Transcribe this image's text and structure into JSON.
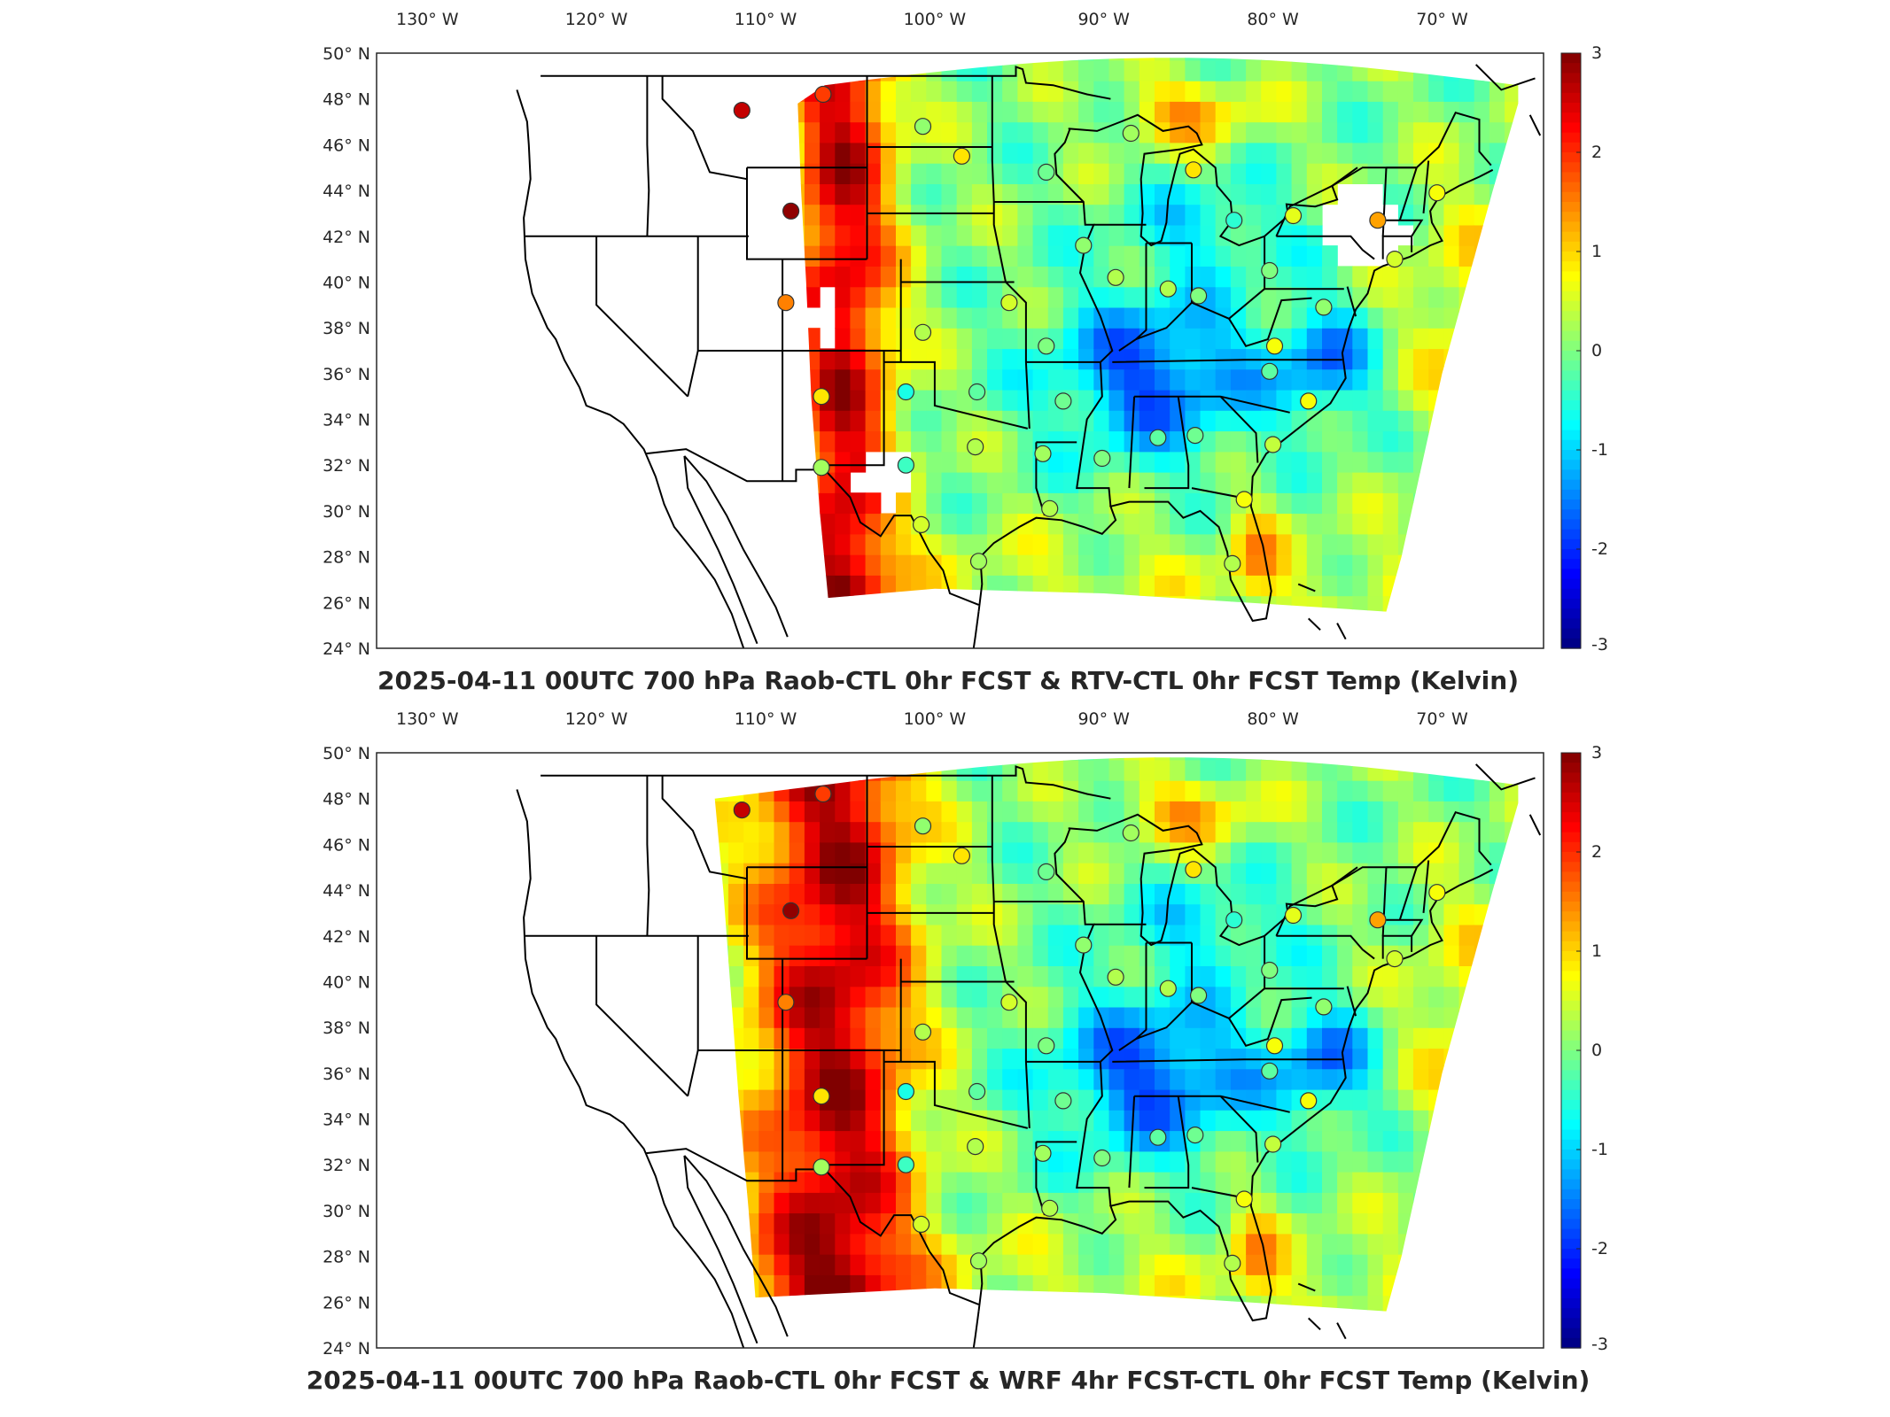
{
  "lon_labels": [
    "130° W",
    "120° W",
    "110° W",
    "100° W",
    "90° W",
    "80° W",
    "70° W"
  ],
  "lat_labels": [
    "50° N",
    "48° N",
    "46° N",
    "44° N",
    "42° N",
    "40° N",
    "38° N",
    "36° N",
    "34° N",
    "32° N",
    "30° N",
    "28° N",
    "26° N",
    "24° N"
  ],
  "colorbar": {
    "ticks": [
      "3",
      "2",
      "1",
      "0",
      "-1",
      "-2",
      "-3"
    ],
    "colormap": "jet",
    "range": [
      -3,
      3
    ]
  },
  "panels": [
    {
      "title": "2025-04-11 00UTC 700 hPa Raob-CTL 0hr FCST & RTV-CTL 0hr FCST Temp (Kelvin)"
    },
    {
      "title": "2025-04-11 00UTC 700 hPa Raob-CTL 0hr FCST & WRF 4hr FCST-CTL 0hr FCST Temp (Kelvin)"
    }
  ],
  "stations": [
    {
      "lon": -111.4,
      "lat": 47.5,
      "v": 2.6
    },
    {
      "lon": -108.5,
      "lat": 43.1,
      "v": 2.9
    },
    {
      "lon": -106.6,
      "lat": 48.2,
      "v": 1.9
    },
    {
      "lon": -108.8,
      "lat": 39.1,
      "v": 1.5
    },
    {
      "lon": -106.7,
      "lat": 35.0,
      "v": 0.9
    },
    {
      "lon": -106.7,
      "lat": 31.9,
      "v": 0.2
    },
    {
      "lon": -101.7,
      "lat": 32.0,
      "v": -0.4
    },
    {
      "lon": -100.8,
      "lat": 29.4,
      "v": 0.5
    },
    {
      "lon": -97.4,
      "lat": 27.8,
      "v": 0.2
    },
    {
      "lon": -97.6,
      "lat": 32.8,
      "v": 0.3
    },
    {
      "lon": -97.5,
      "lat": 35.2,
      "v": -0.2
    },
    {
      "lon": -101.7,
      "lat": 35.2,
      "v": -0.6
    },
    {
      "lon": -95.6,
      "lat": 39.1,
      "v": 0.5
    },
    {
      "lon": -100.7,
      "lat": 37.8,
      "v": 0.3
    },
    {
      "lon": -100.7,
      "lat": 46.8,
      "v": 0.1
    },
    {
      "lon": -98.4,
      "lat": 45.5,
      "v": 0.9
    },
    {
      "lon": -93.4,
      "lat": 44.8,
      "v": -0.1
    },
    {
      "lon": -93.4,
      "lat": 37.2,
      "v": 0.0
    },
    {
      "lon": -92.4,
      "lat": 34.8,
      "v": -0.1
    },
    {
      "lon": -93.6,
      "lat": 32.5,
      "v": 0.2
    },
    {
      "lon": -93.2,
      "lat": 30.1,
      "v": 0.3
    },
    {
      "lon": -90.1,
      "lat": 32.3,
      "v": 0.0
    },
    {
      "lon": -86.8,
      "lat": 33.2,
      "v": -0.2
    },
    {
      "lon": -84.6,
      "lat": 33.3,
      "v": -0.1
    },
    {
      "lon": -86.2,
      "lat": 39.7,
      "v": 0.3
    },
    {
      "lon": -89.3,
      "lat": 40.2,
      "v": 0.3
    },
    {
      "lon": -91.2,
      "lat": 41.6,
      "v": 0.1
    },
    {
      "lon": -84.4,
      "lat": 39.4,
      "v": 0.0
    },
    {
      "lon": -80.2,
      "lat": 40.5,
      "v": 0.0
    },
    {
      "lon": -82.3,
      "lat": 42.7,
      "v": -0.5
    },
    {
      "lon": -84.7,
      "lat": 44.9,
      "v": 0.9
    },
    {
      "lon": -88.4,
      "lat": 46.5,
      "v": 0.2
    },
    {
      "lon": -78.8,
      "lat": 42.9,
      "v": 0.6
    },
    {
      "lon": -73.8,
      "lat": 42.7,
      "v": 1.3
    },
    {
      "lon": -70.3,
      "lat": 43.9,
      "v": 0.7
    },
    {
      "lon": -72.8,
      "lat": 41.0,
      "v": 0.5
    },
    {
      "lon": -77.0,
      "lat": 38.9,
      "v": 0.1
    },
    {
      "lon": -79.9,
      "lat": 37.2,
      "v": 0.7
    },
    {
      "lon": -80.2,
      "lat": 36.1,
      "v": -0.2
    },
    {
      "lon": -77.9,
      "lat": 34.8,
      "v": 0.7
    },
    {
      "lon": -80.0,
      "lat": 32.9,
      "v": 0.4
    },
    {
      "lon": -81.7,
      "lat": 30.5,
      "v": 0.7
    },
    {
      "lon": -82.4,
      "lat": 27.7,
      "v": 0.3
    }
  ]
}
